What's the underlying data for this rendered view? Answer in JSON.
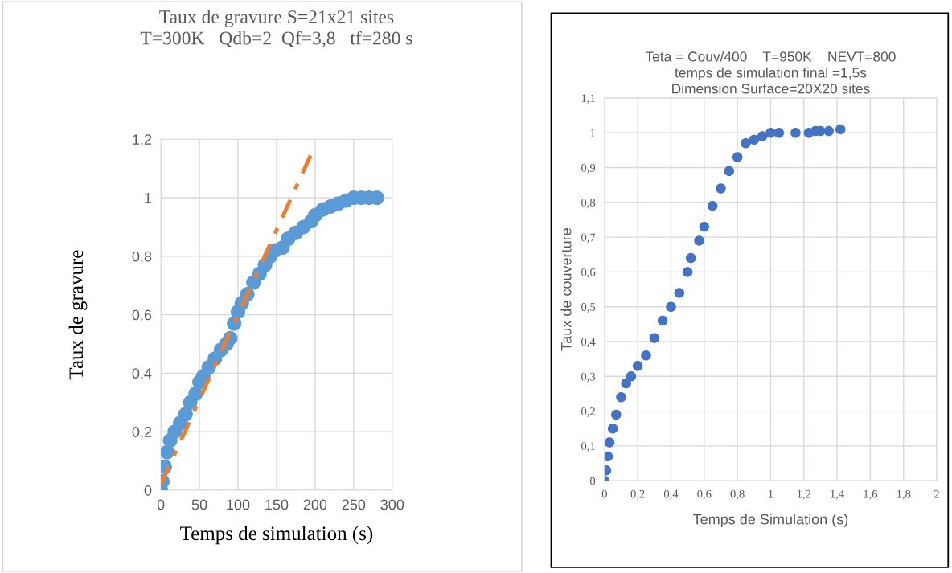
{
  "chart_data": [
    {
      "type": "scatter",
      "title": "Taux de gravure S=21x21 sites\nT=300K   Qdb=2  Qf=3,8   tf=280 s",
      "xlabel": "Temps de simulation (s)",
      "ylabel": "Taux de gravure",
      "xlim": [
        0,
        300
      ],
      "xticks": [
        0,
        50,
        100,
        150,
        200,
        250,
        300
      ],
      "ylim": [
        0,
        1.2
      ],
      "yticks": [
        0,
        {
          "value": 0.2,
          "label": "0,2"
        },
        {
          "value": 0.4,
          "label": "0,4"
        },
        {
          "value": 0.6,
          "label": "0,6"
        },
        {
          "value": 0.8,
          "label": "0,8"
        },
        1,
        {
          "value": 1.2,
          "label": "1,2"
        }
      ],
      "grid": true,
      "series": [
        {
          "marker": "circle",
          "color": "#5b9bd5",
          "x": [
            0,
            2,
            5,
            8,
            12,
            18,
            25,
            32,
            38,
            45,
            50,
            55,
            62,
            70,
            78,
            85,
            90,
            95,
            100,
            105,
            112,
            120,
            128,
            135,
            142,
            148,
            158,
            165,
            175,
            185,
            195,
            200,
            210,
            220,
            230,
            240,
            250,
            260,
            270,
            280
          ],
          "values": [
            0,
            0.03,
            0.08,
            0.13,
            0.17,
            0.2,
            0.23,
            0.26,
            0.3,
            0.33,
            0.37,
            0.39,
            0.42,
            0.45,
            0.48,
            0.5,
            0.52,
            0.57,
            0.61,
            0.64,
            0.67,
            0.71,
            0.74,
            0.77,
            0.8,
            0.82,
            0.83,
            0.86,
            0.88,
            0.9,
            0.92,
            0.94,
            0.96,
            0.97,
            0.98,
            0.99,
            1.0,
            1.0,
            1.0,
            1.0
          ]
        },
        {
          "type": "line",
          "marker": "none",
          "color": "#ed7d31",
          "line_style": "dashed",
          "x": [
            0,
            195
          ],
          "values": [
            0.02,
            1.15
          ]
        }
      ]
    },
    {
      "type": "scatter",
      "title": "Teta = Couv/400    T=950K    NEVT=800\ntemps de simulation final =1,5s\nDimension Surface=20X20 sites",
      "xlabel": "Temps de Simulation (s)",
      "ylabel": "Taux de couverture",
      "xlim": [
        0,
        2
      ],
      "xticks": [
        0,
        {
          "value": 0.2,
          "label": "0,2"
        },
        {
          "value": 0.4,
          "label": "0,4"
        },
        {
          "value": 0.6,
          "label": "0,6"
        },
        {
          "value": 0.8,
          "label": "0,8"
        },
        1,
        {
          "value": 1.2,
          "label": "1,2"
        },
        {
          "value": 1.4,
          "label": "1,4"
        },
        {
          "value": 1.6,
          "label": "1,6"
        },
        {
          "value": 1.8,
          "label": "1,8"
        },
        2
      ],
      "ylim": [
        0,
        1.1
      ],
      "yticks": [
        0,
        {
          "value": 0.1,
          "label": "0,1"
        },
        {
          "value": 0.2,
          "label": "0,2"
        },
        {
          "value": 0.3,
          "label": "0,3"
        },
        {
          "value": 0.4,
          "label": "0,4"
        },
        {
          "value": 0.5,
          "label": "0,5"
        },
        {
          "value": 0.6,
          "label": "0,6"
        },
        {
          "value": 0.7,
          "label": "0,7"
        },
        {
          "value": 0.8,
          "label": "0,8"
        },
        {
          "value": 0.9,
          "label": "0,9"
        },
        1,
        {
          "value": 1.1,
          "label": "1,1"
        }
      ],
      "grid": true,
      "series": [
        {
          "marker": "circle",
          "color": "#4472c4",
          "x": [
            0,
            0.01,
            0.02,
            0.03,
            0.05,
            0.07,
            0.1,
            0.13,
            0.16,
            0.2,
            0.25,
            0.3,
            0.35,
            0.4,
            0.45,
            0.5,
            0.52,
            0.57,
            0.6,
            0.65,
            0.7,
            0.75,
            0.8,
            0.85,
            0.9,
            0.95,
            1.0,
            1.05,
            1.15,
            1.23,
            1.27,
            1.3,
            1.35,
            1.42
          ],
          "values": [
            0,
            0.03,
            0.07,
            0.11,
            0.15,
            0.19,
            0.24,
            0.28,
            0.3,
            0.33,
            0.36,
            0.41,
            0.46,
            0.5,
            0.54,
            0.6,
            0.64,
            0.69,
            0.73,
            0.79,
            0.84,
            0.89,
            0.93,
            0.97,
            0.98,
            0.99,
            1.0,
            1.0,
            1.0,
            1.0,
            1.005,
            1.005,
            1.005,
            1.01
          ]
        }
      ]
    }
  ]
}
